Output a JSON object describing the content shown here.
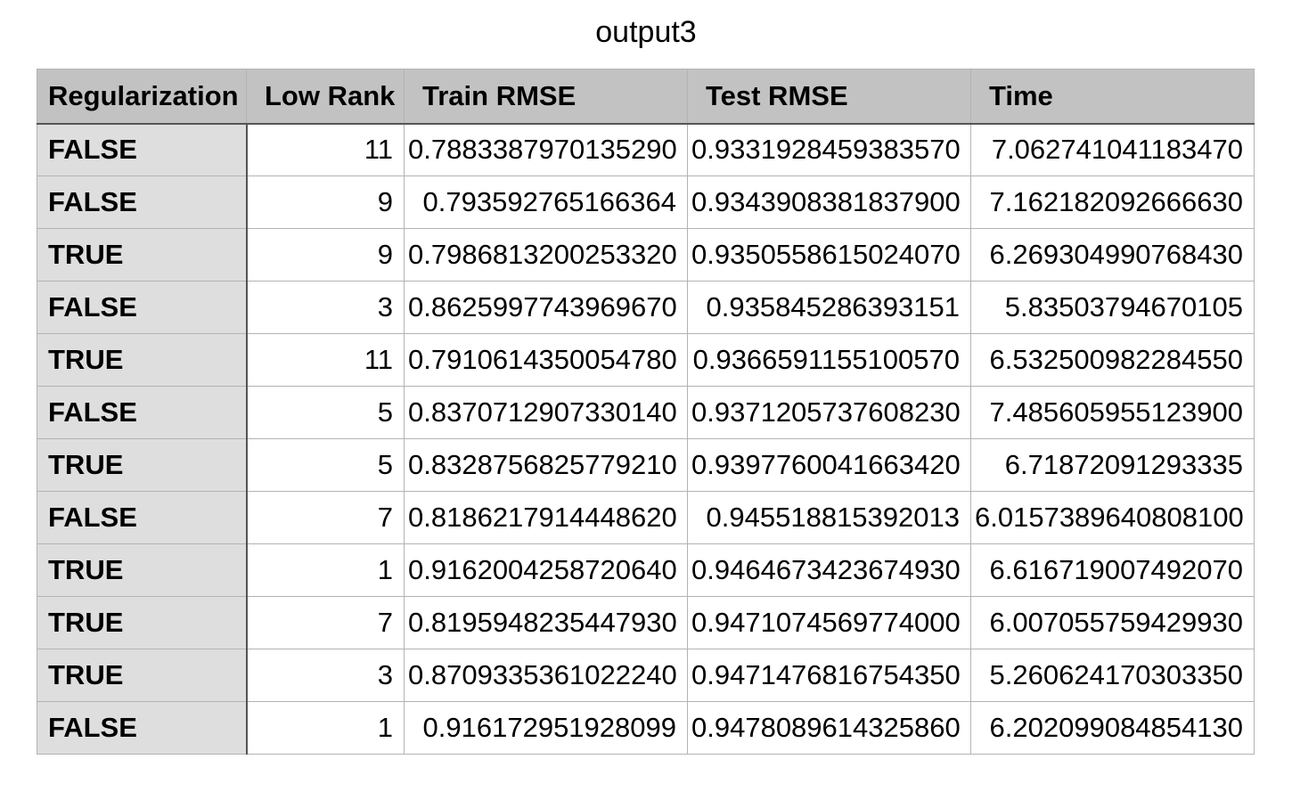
{
  "title": "output3",
  "table": {
    "headers": [
      "Regularization",
      "Low Rank",
      "Train RMSE",
      "Test RMSE",
      "Time"
    ],
    "rows": [
      [
        "FALSE",
        "11",
        "0.7883387970135290",
        "0.9331928459383570",
        "7.062741041183470"
      ],
      [
        "FALSE",
        "9",
        "0.793592765166364",
        "0.9343908381837900",
        "7.162182092666630"
      ],
      [
        "TRUE",
        "9",
        "0.7986813200253320",
        "0.9350558615024070",
        "6.269304990768430"
      ],
      [
        "FALSE",
        "3",
        "0.8625997743969670",
        "0.935845286393151",
        "5.83503794670105"
      ],
      [
        "TRUE",
        "11",
        "0.7910614350054780",
        "0.9366591155100570",
        "6.532500982284550"
      ],
      [
        "FALSE",
        "5",
        "0.8370712907330140",
        "0.9371205737608230",
        "7.485605955123900"
      ],
      [
        "TRUE",
        "5",
        "0.8328756825779210",
        "0.9397760041663420",
        "6.71872091293335"
      ],
      [
        "FALSE",
        "7",
        "0.8186217914448620",
        "0.945518815392013",
        "6.0157389640808100"
      ],
      [
        "TRUE",
        "1",
        "0.9162004258720640",
        "0.9464673423674930",
        "6.616719007492070"
      ],
      [
        "TRUE",
        "7",
        "0.8195948235447930",
        "0.9471074569774000",
        "6.007055759429930"
      ],
      [
        "TRUE",
        "3",
        "0.8709335361022240",
        "0.9471476816754350",
        "5.260624170303350"
      ],
      [
        "FALSE",
        "1",
        "0.916172951928099",
        "0.9478089614325860",
        "6.202099084854130"
      ]
    ]
  }
}
